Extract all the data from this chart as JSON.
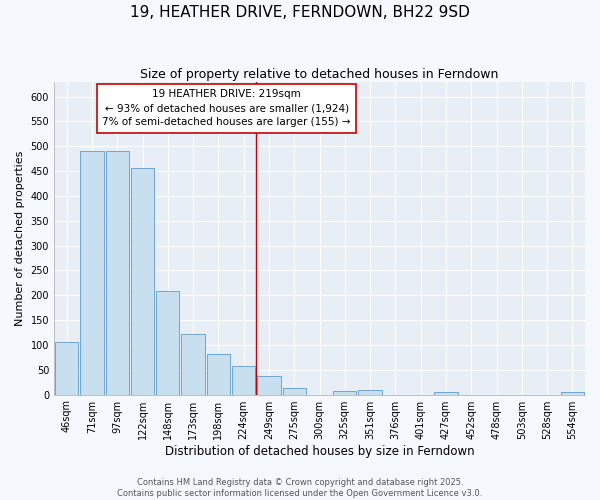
{
  "title": "19, HEATHER DRIVE, FERNDOWN, BH22 9SD",
  "subtitle": "Size of property relative to detached houses in Ferndown",
  "xlabel": "Distribution of detached houses by size in Ferndown",
  "ylabel": "Number of detached properties",
  "bar_labels": [
    "46sqm",
    "71sqm",
    "97sqm",
    "122sqm",
    "148sqm",
    "173sqm",
    "198sqm",
    "224sqm",
    "249sqm",
    "275sqm",
    "300sqm",
    "325sqm",
    "351sqm",
    "376sqm",
    "401sqm",
    "427sqm",
    "452sqm",
    "478sqm",
    "503sqm",
    "528sqm",
    "554sqm"
  ],
  "bar_heights": [
    105,
    490,
    490,
    457,
    208,
    122,
    82,
    57,
    37,
    13,
    0,
    8,
    10,
    0,
    0,
    5,
    0,
    0,
    0,
    0,
    5
  ],
  "bar_color": "#c8dff0",
  "bar_edge_color": "#5b9bd5",
  "vline_x": 7.5,
  "vline_color": "#cc0000",
  "annotation_box_text": "19 HEATHER DRIVE: 219sqm\n← 93% of detached houses are smaller (1,924)\n7% of semi-detached houses are larger (155) →",
  "ylim": [
    0,
    630
  ],
  "yticks": [
    0,
    50,
    100,
    150,
    200,
    250,
    300,
    350,
    400,
    450,
    500,
    550,
    600
  ],
  "background_color": "#f5f8fc",
  "plot_bg_color": "#e8eef5",
  "grid_color": "#ffffff",
  "footer_line1": "Contains HM Land Registry data © Crown copyright and database right 2025.",
  "footer_line2": "Contains public sector information licensed under the Open Government Licence v3.0.",
  "title_fontsize": 11,
  "subtitle_fontsize": 9,
  "annotation_fontsize": 7.5,
  "tick_fontsize": 7,
  "ylabel_fontsize": 8,
  "xlabel_fontsize": 8.5
}
